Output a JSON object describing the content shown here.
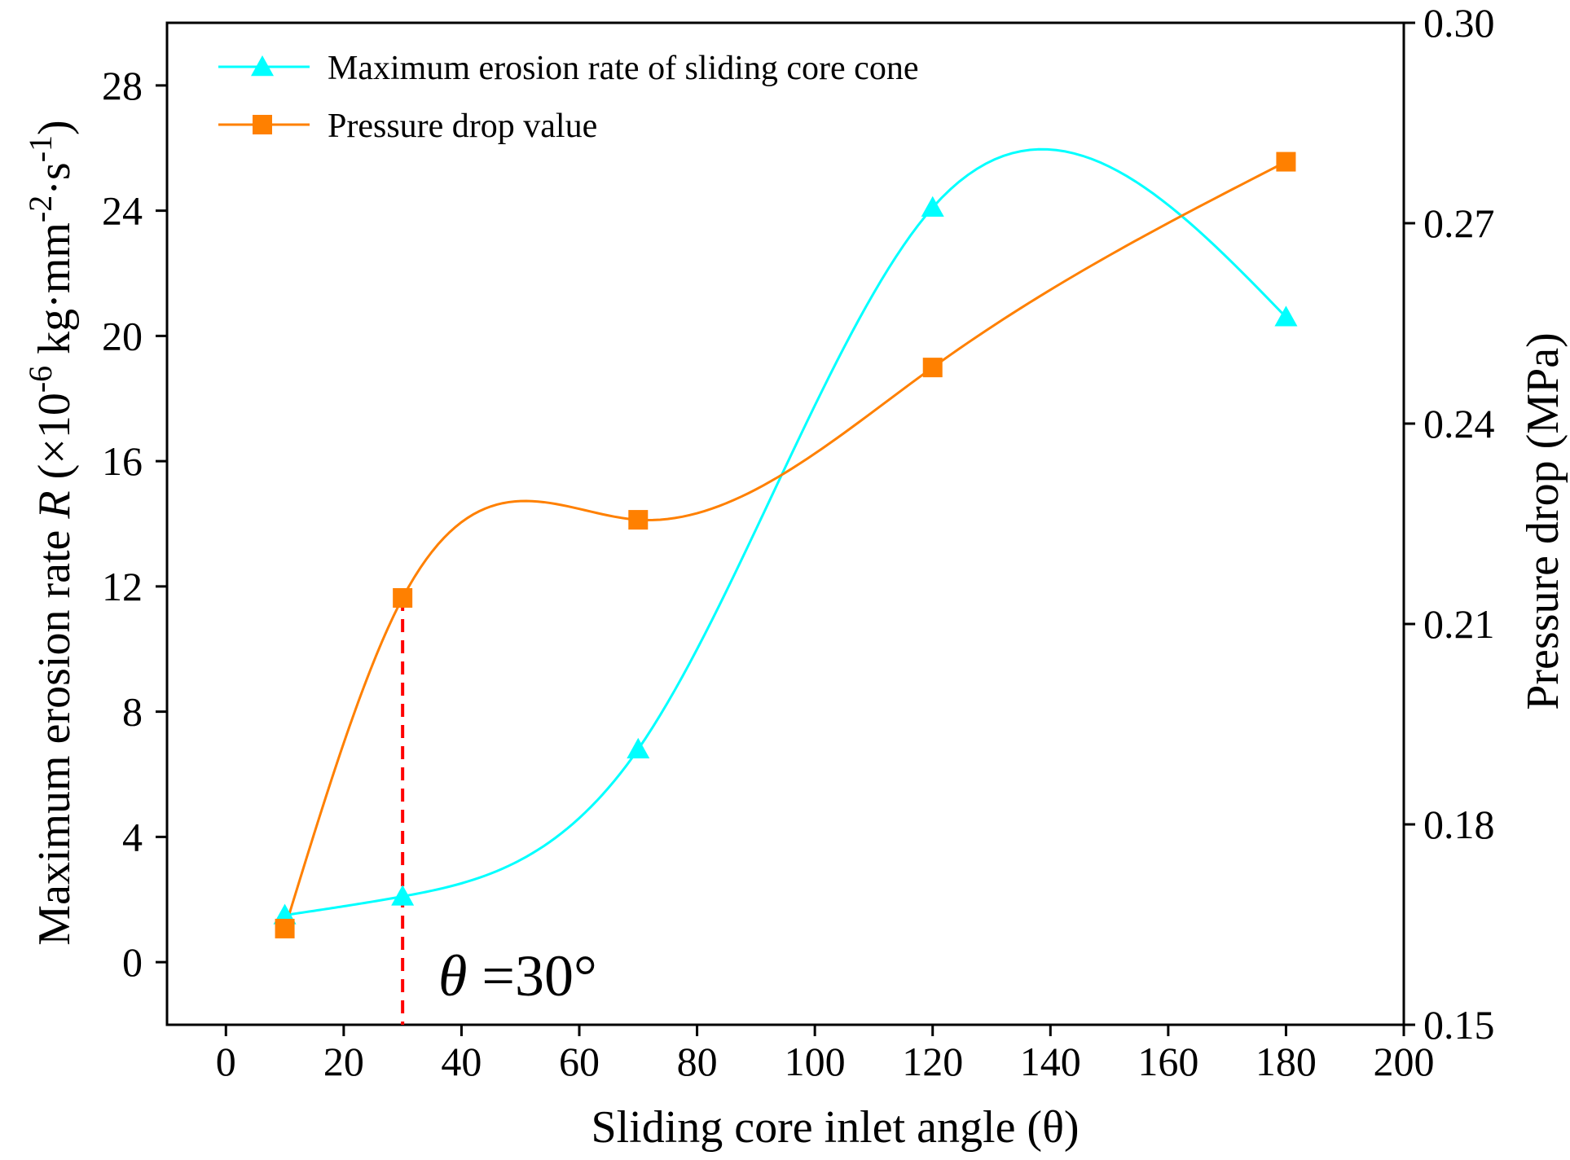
{
  "chart_data": {
    "type": "line",
    "xlabel": "Sliding core inlet angle (θ)",
    "ylabel": "Maximum erosion rate R (×10-6 kg·mm-2·s-1)",
    "ylabel_parts": {
      "prefix": "Maximum erosion rate ",
      "var": "R",
      "open": " (×10",
      "exp1": "-6",
      "unit1": " kg·mm",
      "exp2": "-2",
      "unit2": "·s",
      "exp3": "-1",
      "close": ")"
    },
    "y2label": "Pressure drop (MPa)",
    "xlim": [
      -10,
      200
    ],
    "ylim": [
      -2,
      30
    ],
    "y2lim": [
      0.15,
      0.3
    ],
    "xticks": [
      0,
      20,
      40,
      60,
      80,
      100,
      120,
      140,
      160,
      180,
      200
    ],
    "yticks": [
      0,
      4,
      8,
      12,
      16,
      20,
      24,
      28
    ],
    "y2ticks": [
      "0.15",
      "0.18",
      "0.21",
      "0.24",
      "0.27",
      "0.30"
    ],
    "series": [
      {
        "name": "Maximum erosion rate of sliding core cone",
        "axis": "left",
        "marker": "triangle",
        "color": "#00FFFF",
        "x": [
          10,
          30,
          70,
          120,
          180
        ],
        "y": [
          1.5,
          2.1,
          6.8,
          24.1,
          20.6
        ]
      },
      {
        "name": "Pressure drop value",
        "axis": "right",
        "marker": "square",
        "color": "#FF8000",
        "x": [
          10,
          30,
          70,
          120,
          180
        ],
        "y": [
          0.1644,
          0.2139,
          0.2256,
          0.2484,
          0.2792
        ]
      }
    ],
    "annotation": {
      "var": "θ",
      "text": " =30°",
      "x": 30,
      "line_color": "#FF0000"
    }
  }
}
